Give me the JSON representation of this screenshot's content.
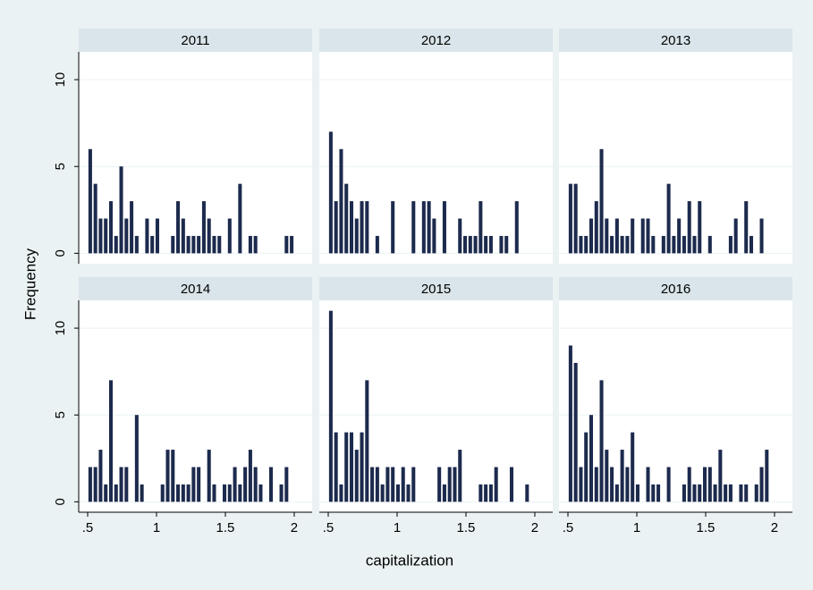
{
  "chart_data": {
    "type": "histogram",
    "x_label": "capitalization",
    "y_label": "Frequency",
    "bins": [
      0.5,
      0.5375,
      0.575,
      0.6125,
      0.65,
      0.6875,
      0.725,
      0.7625,
      0.8,
      0.8375,
      0.875,
      0.9125,
      0.95,
      0.9875,
      1.025,
      1.0625,
      1.1,
      1.1375,
      1.175,
      1.2125,
      1.25,
      1.2875,
      1.325,
      1.3625,
      1.4,
      1.4375,
      1.475,
      1.5125,
      1.55,
      1.5875,
      1.625,
      1.6625,
      1.7,
      1.7375,
      1.775,
      1.8125,
      1.85,
      1.8875,
      1.925,
      1.9625,
      2.0
    ],
    "series": [
      {
        "name": "2011",
        "color": "#1c2a4d",
        "values": [
          6,
          4,
          2,
          2,
          3,
          1,
          5,
          2,
          3,
          1,
          0,
          2,
          1,
          2,
          0,
          0,
          1,
          3,
          2,
          1,
          1,
          1,
          3,
          2,
          1,
          1,
          0,
          2,
          0,
          4,
          0,
          1,
          1,
          0,
          0,
          0,
          0,
          0,
          1,
          1
        ]
      },
      {
        "name": "2012",
        "color": "#1c2a4d",
        "values": [
          7,
          3,
          6,
          4,
          3,
          2,
          3,
          3,
          0,
          1,
          0,
          0,
          3,
          0,
          0,
          0,
          3,
          0,
          3,
          3,
          2,
          0,
          3,
          0,
          0,
          2,
          1,
          1,
          1,
          3,
          1,
          1,
          0,
          1,
          1,
          0,
          3,
          0,
          0,
          0
        ]
      },
      {
        "name": "2013",
        "color": "#1c2a4d",
        "values": [
          4,
          4,
          1,
          1,
          2,
          3,
          6,
          2,
          1,
          2,
          1,
          1,
          2,
          0,
          2,
          2,
          1,
          0,
          1,
          4,
          1,
          2,
          1,
          3,
          1,
          3,
          0,
          1,
          0,
          0,
          0,
          1,
          2,
          0,
          3,
          1,
          0,
          2,
          0,
          0
        ]
      },
      {
        "name": "2014",
        "color": "#1c2a4d",
        "values": [
          2,
          2,
          3,
          1,
          7,
          1,
          2,
          2,
          0,
          5,
          1,
          0,
          0,
          0,
          1,
          3,
          3,
          1,
          1,
          1,
          2,
          2,
          0,
          3,
          1,
          0,
          1,
          1,
          2,
          1,
          2,
          3,
          2,
          1,
          0,
          2,
          0,
          1,
          2,
          0
        ]
      },
      {
        "name": "2015",
        "color": "#1c2a4d",
        "values": [
          11,
          4,
          1,
          4,
          4,
          3,
          4,
          7,
          2,
          2,
          1,
          2,
          2,
          1,
          2,
          1,
          2,
          0,
          0,
          0,
          0,
          2,
          1,
          2,
          2,
          3,
          0,
          0,
          0,
          1,
          1,
          1,
          2,
          0,
          0,
          2,
          0,
          0,
          1,
          0
        ]
      },
      {
        "name": "2016",
        "color": "#1c2a4d",
        "values": [
          9,
          8,
          2,
          4,
          5,
          2,
          7,
          3,
          2,
          1,
          3,
          2,
          4,
          1,
          0,
          2,
          1,
          1,
          0,
          2,
          0,
          0,
          1,
          2,
          1,
          1,
          2,
          2,
          1,
          3,
          1,
          1,
          0,
          1,
          1,
          0,
          1,
          2,
          3,
          0
        ]
      }
    ],
    "xlim": [
      0.435,
      2.13
    ],
    "ylim": [
      -0.6,
      11.6
    ],
    "xticks": [
      {
        "value": 0.5,
        "label": ".5"
      },
      1,
      1.5,
      2
    ],
    "yticks": [
      0,
      5,
      10
    ],
    "grid": true
  }
}
